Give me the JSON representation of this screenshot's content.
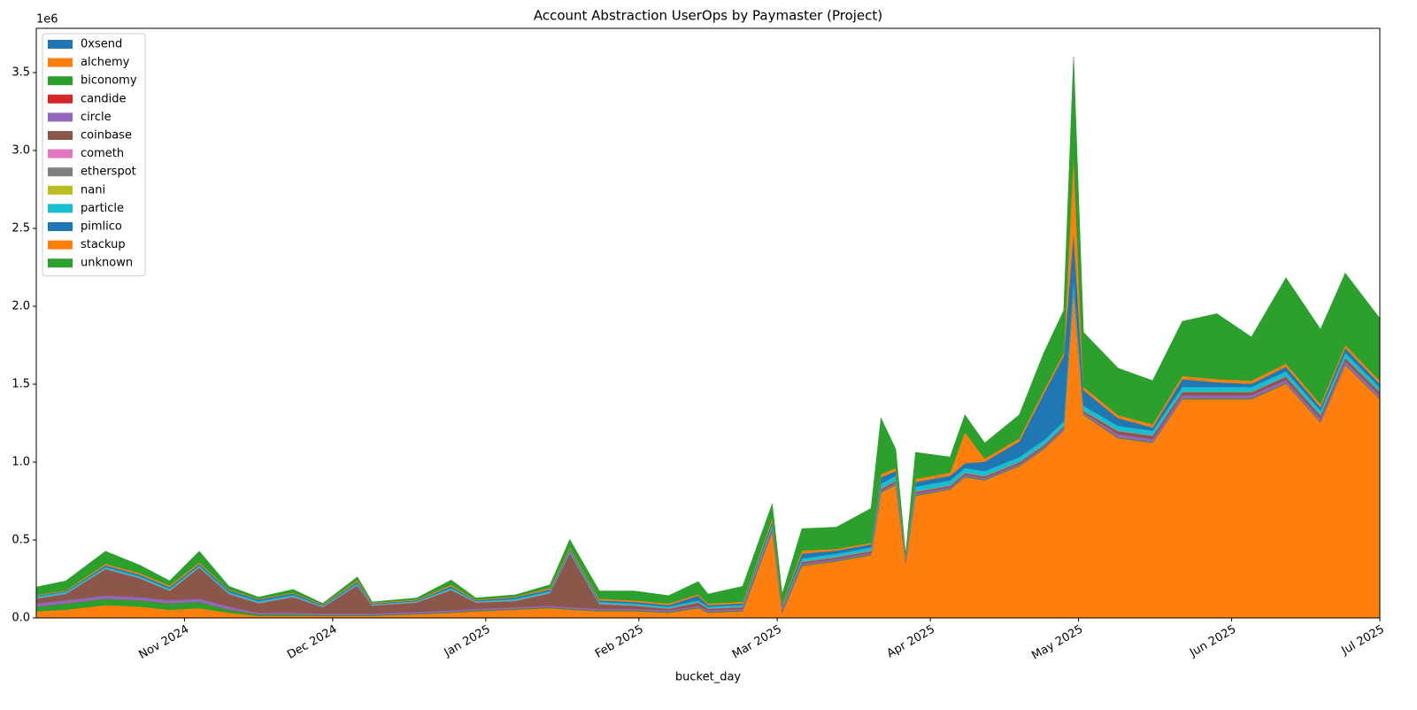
{
  "chart_data": {
    "type": "stacked_area",
    "title": "Account Abstraction UserOps by Paymaster (Project)",
    "x_label": "bucket_day",
    "y_offset_label": "1e6",
    "legend": "upper left",
    "xlim": [
      "2024-10-02",
      "2025-07-01"
    ],
    "xticks": [
      {
        "value": "2024-11-01",
        "label": "Nov 2024"
      },
      {
        "value": "2024-12-01",
        "label": "Dec 2024"
      },
      {
        "value": "2025-01-01",
        "label": "Jan 2025"
      },
      {
        "value": "2025-02-01",
        "label": "Feb 2025"
      },
      {
        "value": "2025-03-01",
        "label": "Mar 2025"
      },
      {
        "value": "2025-04-01",
        "label": "Apr 2025"
      },
      {
        "value": "2025-05-01",
        "label": "May 2025"
      },
      {
        "value": "2025-06-01",
        "label": "Jun 2025"
      },
      {
        "value": "2025-07-01",
        "label": "Jul 2025"
      }
    ],
    "ylim": [
      0,
      3.784
    ],
    "yticks": [
      {
        "value": 0,
        "label": "0.0"
      },
      0.5,
      {
        "value": 1,
        "label": "1.0"
      },
      1.5,
      {
        "value": 2,
        "label": "2.0"
      },
      2.5,
      {
        "value": 3,
        "label": "3.0"
      },
      3.5
    ],
    "x": [
      "2024-10-02",
      "2024-10-08",
      "2024-10-16",
      "2024-10-23",
      "2024-10-29",
      "2024-11-04",
      "2024-11-10",
      "2024-11-16",
      "2024-11-23",
      "2024-11-29",
      "2024-12-06",
      "2024-12-09",
      "2024-12-18",
      "2024-12-25",
      "2024-12-30",
      "2025-01-07",
      "2025-01-14",
      "2025-01-18",
      "2025-01-24",
      "2025-01-31",
      "2025-02-07",
      "2025-02-13",
      "2025-02-15",
      "2025-02-22",
      "2025-02-28",
      "2025-03-02",
      "2025-03-06",
      "2025-03-13",
      "2025-03-20",
      "2025-03-22",
      "2025-03-25",
      "2025-03-27",
      "2025-03-29",
      "2025-04-05",
      "2025-04-08",
      "2025-04-12",
      "2025-04-19",
      "2025-04-24",
      "2025-04-28",
      "2025-04-30",
      "2025-05-02",
      "2025-05-09",
      "2025-05-16",
      "2025-05-22",
      "2025-05-29",
      "2025-06-05",
      "2025-06-12",
      "2025-06-19",
      "2025-06-24",
      "2025-07-01"
    ],
    "series": [
      {
        "name": "0xsend",
        "color": "#1f77b4",
        "values": [
          0.003,
          0.003,
          0.003,
          0.003,
          0.003,
          0.003,
          0.003,
          0.003,
          0.003,
          0.003,
          0.003,
          0.003,
          0.003,
          0.003,
          0.003,
          0.003,
          0.003,
          0.003,
          0.003,
          0.003,
          0.003,
          0.003,
          0.003,
          0.003,
          0.003,
          0.003,
          0.003,
          0.003,
          0.003,
          0.003,
          0.003,
          0.003,
          0.003,
          0.003,
          0.003,
          0.003,
          0.003,
          0.003,
          0.003,
          0.003,
          0.003,
          0.003,
          0.003,
          0.003,
          0.003,
          0.003,
          0.003,
          0.003,
          0.003,
          0.003
        ]
      },
      {
        "name": "alchemy",
        "color": "#ff7f0e",
        "values": [
          0.04,
          0.05,
          0.08,
          0.07,
          0.05,
          0.06,
          0.03,
          0.01,
          0.01,
          0.01,
          0.01,
          0.01,
          0.02,
          0.03,
          0.04,
          0.05,
          0.06,
          0.05,
          0.04,
          0.04,
          0.03,
          0.06,
          0.03,
          0.04,
          0.55,
          0.03,
          0.33,
          0.36,
          0.4,
          0.8,
          0.85,
          0.35,
          0.78,
          0.82,
          0.9,
          0.88,
          0.97,
          1.08,
          1.2,
          2.1,
          1.3,
          1.15,
          1.12,
          1.4,
          1.4,
          1.4,
          1.5,
          1.25,
          1.62,
          1.4
        ]
      },
      {
        "name": "biconomy",
        "color": "#2ca02c",
        "values": [
          0.03,
          0.04,
          0.04,
          0.04,
          0.04,
          0.04,
          0.02,
          0.01,
          0.01,
          0.005,
          0.005,
          0.005,
          0.005,
          0.005,
          0.005,
          0.005,
          0.005,
          0.005,
          0.005,
          0.005,
          0.005,
          0.005,
          0.005,
          0.005,
          0.005,
          0.005,
          0.005,
          0.005,
          0.005,
          0.005,
          0.005,
          0.005,
          0.005,
          0.005,
          0.005,
          0.005,
          0.005,
          0.005,
          0.005,
          0.005,
          0.005,
          0.005,
          0.005,
          0.005,
          0.005,
          0.005,
          0.005,
          0.005,
          0.005,
          0.005
        ]
      },
      {
        "name": "candide",
        "color": "#d62728",
        "values": [
          0.001,
          0.001,
          0.001,
          0.001,
          0.001,
          0.001,
          0.001,
          0.001,
          0.001,
          0.001,
          0.001,
          0.001,
          0.001,
          0.001,
          0.001,
          0.001,
          0.001,
          0.001,
          0.001,
          0.001,
          0.001,
          0.001,
          0.001,
          0.001,
          0.001,
          0.001,
          0.001,
          0.001,
          0.001,
          0.001,
          0.001,
          0.001,
          0.001,
          0.001,
          0.001,
          0.001,
          0.001,
          0.001,
          0.001,
          0.001,
          0.001,
          0.001,
          0.001,
          0.001,
          0.001,
          0.001,
          0.001,
          0.001,
          0.001,
          0.001
        ]
      },
      {
        "name": "circle",
        "color": "#9467bd",
        "values": [
          0.02,
          0.02,
          0.02,
          0.02,
          0.02,
          0.02,
          0.02,
          0.01,
          0.01,
          0.01,
          0.01,
          0.01,
          0.01,
          0.01,
          0.01,
          0.01,
          0.01,
          0.01,
          0.01,
          0.01,
          0.01,
          0.01,
          0.01,
          0.01,
          0.01,
          0.01,
          0.01,
          0.01,
          0.01,
          0.01,
          0.01,
          0.01,
          0.01,
          0.01,
          0.01,
          0.01,
          0.01,
          0.01,
          0.01,
          0.01,
          0.01,
          0.02,
          0.02,
          0.02,
          0.02,
          0.02,
          0.02,
          0.02,
          0.02,
          0.02
        ]
      },
      {
        "name": "coinbase",
        "color": "#8c564b",
        "values": [
          0.03,
          0.04,
          0.17,
          0.12,
          0.06,
          0.2,
          0.08,
          0.06,
          0.1,
          0.04,
          0.18,
          0.05,
          0.06,
          0.13,
          0.04,
          0.04,
          0.08,
          0.35,
          0.03,
          0.02,
          0.01,
          0.02,
          0.01,
          0.01,
          0.01,
          0.01,
          0.01,
          0.01,
          0.01,
          0.01,
          0.01,
          0.01,
          0.01,
          0.01,
          0.01,
          0.01,
          0.01,
          0.01,
          0.01,
          0.01,
          0.01,
          0.02,
          0.02,
          0.02,
          0.02,
          0.02,
          0.02,
          0.02,
          0.02,
          0.02
        ]
      },
      {
        "name": "cometh",
        "color": "#e377c2",
        "values": [
          0.002,
          0.002,
          0.002,
          0.002,
          0.002,
          0.002,
          0.002,
          0.002,
          0.002,
          0.002,
          0.002,
          0.002,
          0.002,
          0.002,
          0.002,
          0.002,
          0.002,
          0.002,
          0.002,
          0.002,
          0.002,
          0.002,
          0.002,
          0.002,
          0.002,
          0.002,
          0.002,
          0.002,
          0.002,
          0.002,
          0.002,
          0.002,
          0.002,
          0.002,
          0.002,
          0.002,
          0.002,
          0.002,
          0.002,
          0.002,
          0.002,
          0.002,
          0.002,
          0.002,
          0.002,
          0.002,
          0.002,
          0.002,
          0.002,
          0.002
        ]
      },
      {
        "name": "etherspot",
        "color": "#7f7f7f",
        "values": [
          0.001,
          0.001,
          0.001,
          0.001,
          0.001,
          0.001,
          0.001,
          0.001,
          0.001,
          0.001,
          0.001,
          0.001,
          0.001,
          0.001,
          0.001,
          0.001,
          0.001,
          0.001,
          0.001,
          0.001,
          0.001,
          0.001,
          0.001,
          0.001,
          0.001,
          0.001,
          0.001,
          0.001,
          0.001,
          0.001,
          0.001,
          0.001,
          0.001,
          0.001,
          0.001,
          0.001,
          0.001,
          0.001,
          0.001,
          0.001,
          0.001,
          0.001,
          0.001,
          0.001,
          0.001,
          0.001,
          0.001,
          0.001,
          0.001,
          0.001
        ]
      },
      {
        "name": "nani",
        "color": "#bcbd22",
        "values": [
          0.001,
          0.001,
          0.001,
          0.001,
          0.001,
          0.001,
          0.001,
          0.001,
          0.001,
          0.001,
          0.001,
          0.001,
          0.001,
          0.001,
          0.001,
          0.001,
          0.001,
          0.001,
          0.001,
          0.001,
          0.001,
          0.001,
          0.001,
          0.001,
          0.001,
          0.001,
          0.001,
          0.001,
          0.001,
          0.001,
          0.001,
          0.001,
          0.001,
          0.001,
          0.001,
          0.001,
          0.001,
          0.001,
          0.001,
          0.001,
          0.001,
          0.001,
          0.001,
          0.001,
          0.001,
          0.001,
          0.001,
          0.001,
          0.001,
          0.001
        ]
      },
      {
        "name": "particle",
        "color": "#17becf",
        "values": [
          0.01,
          0.01,
          0.01,
          0.01,
          0.01,
          0.01,
          0.01,
          0.01,
          0.01,
          0.005,
          0.01,
          0.005,
          0.005,
          0.01,
          0.005,
          0.01,
          0.01,
          0.01,
          0.01,
          0.01,
          0.01,
          0.01,
          0.01,
          0.01,
          0.02,
          0.01,
          0.02,
          0.02,
          0.02,
          0.03,
          0.03,
          0.01,
          0.03,
          0.03,
          0.03,
          0.03,
          0.03,
          0.03,
          0.03,
          0.05,
          0.03,
          0.03,
          0.03,
          0.03,
          0.03,
          0.03,
          0.03,
          0.03,
          0.03,
          0.03
        ]
      },
      {
        "name": "pimlico",
        "color": "#1f77b4",
        "values": [
          0.005,
          0.005,
          0.01,
          0.01,
          0.01,
          0.01,
          0.01,
          0.01,
          0.01,
          0.005,
          0.01,
          0.005,
          0.005,
          0.01,
          0.005,
          0.01,
          0.01,
          0.01,
          0.01,
          0.01,
          0.01,
          0.03,
          0.01,
          0.01,
          0.02,
          0.01,
          0.03,
          0.02,
          0.02,
          0.04,
          0.03,
          0.005,
          0.03,
          0.03,
          0.03,
          0.06,
          0.1,
          0.3,
          0.42,
          0.3,
          0.1,
          0.05,
          0.02,
          0.05,
          0.03,
          0.02,
          0.03,
          0.02,
          0.03,
          0.02
        ]
      },
      {
        "name": "stackup",
        "color": "#ff7f0e",
        "values": [
          0.005,
          0.005,
          0.01,
          0.01,
          0.01,
          0.01,
          0.005,
          0.005,
          0.005,
          0.005,
          0.01,
          0.005,
          0.005,
          0.01,
          0.005,
          0.005,
          0.01,
          0.01,
          0.01,
          0.01,
          0.01,
          0.01,
          0.01,
          0.01,
          0.02,
          0.01,
          0.02,
          0.01,
          0.01,
          0.02,
          0.02,
          0.005,
          0.02,
          0.02,
          0.2,
          0.02,
          0.02,
          0.02,
          0.02,
          0.5,
          0.02,
          0.02,
          0.02,
          0.02,
          0.02,
          0.02,
          0.02,
          0.02,
          0.02,
          0.02
        ]
      },
      {
        "name": "unknown",
        "color": "#2ca02c",
        "values": [
          0.05,
          0.06,
          0.08,
          0.05,
          0.03,
          0.07,
          0.02,
          0.01,
          0.02,
          0.005,
          0.02,
          0.005,
          0.01,
          0.03,
          0.01,
          0.01,
          0.02,
          0.05,
          0.05,
          0.06,
          0.05,
          0.08,
          0.06,
          0.1,
          0.09,
          0.06,
          0.14,
          0.14,
          0.22,
          0.36,
          0.12,
          0.005,
          0.17,
          0.1,
          0.11,
          0.1,
          0.15,
          0.24,
          0.27,
          0.62,
          0.35,
          0.3,
          0.28,
          0.35,
          0.42,
          0.28,
          0.55,
          0.48,
          0.46,
          0.4
        ]
      }
    ]
  }
}
